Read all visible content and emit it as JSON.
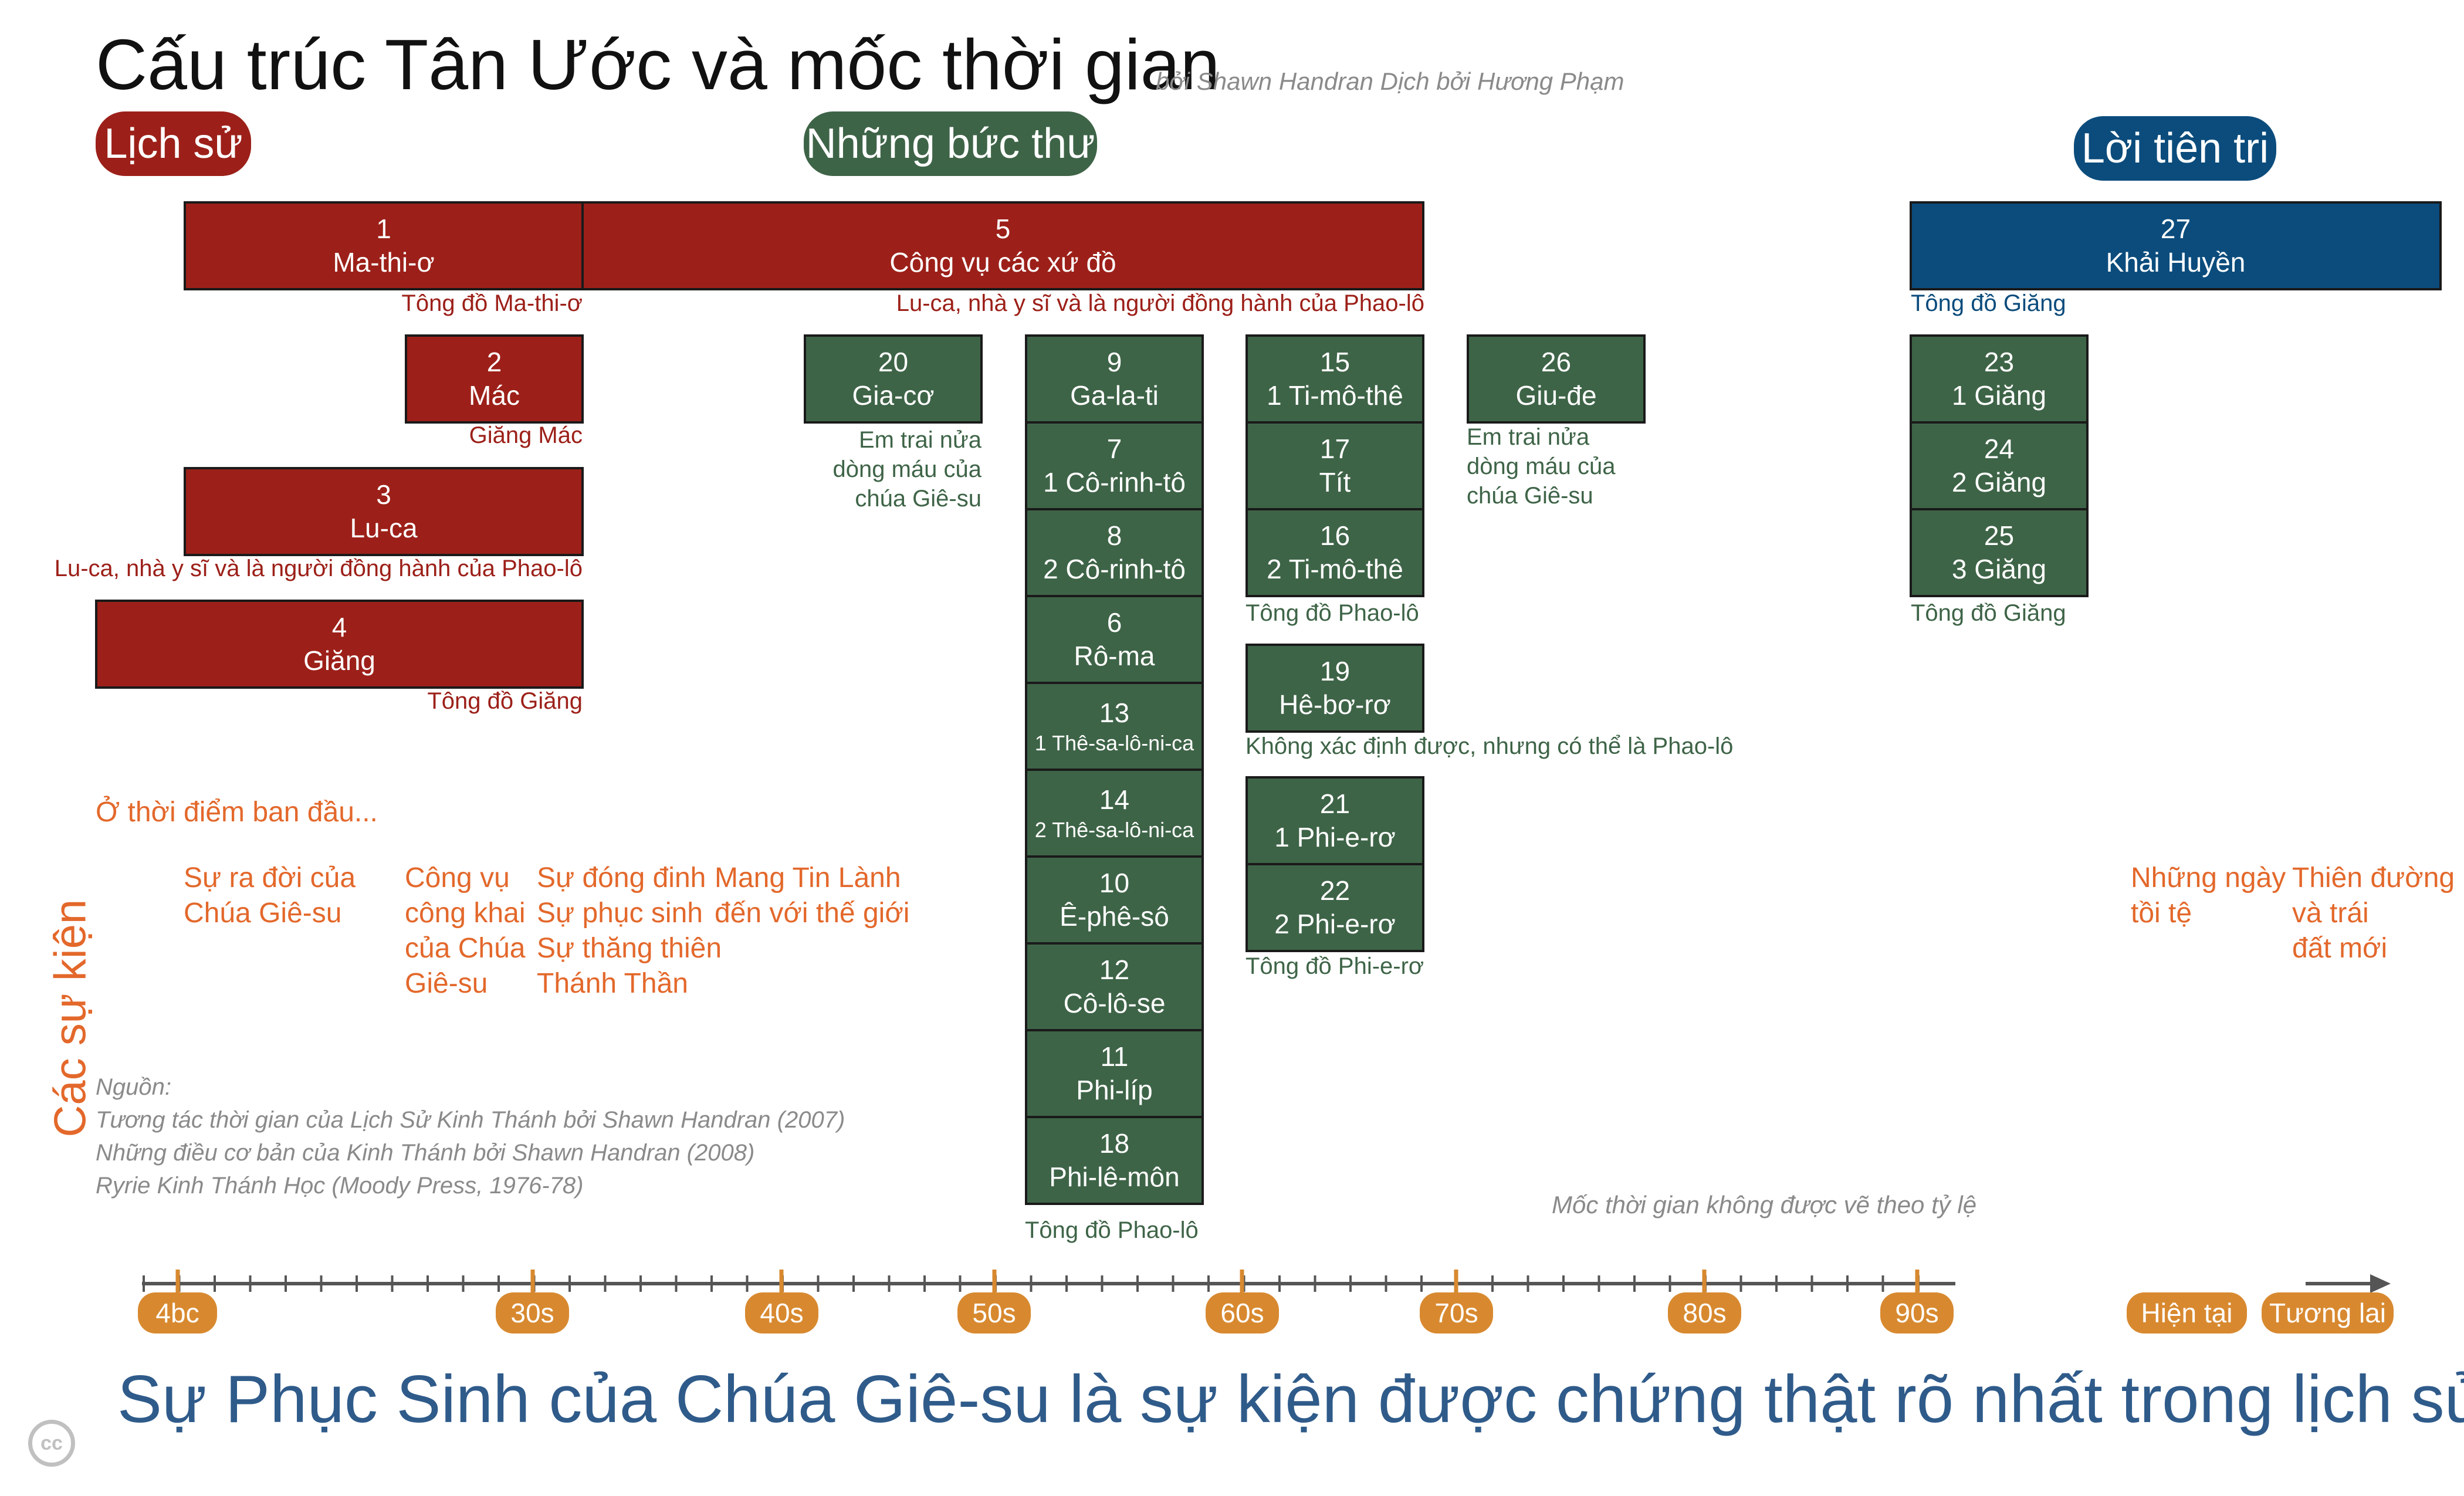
{
  "title": "Cấu trúc Tân Ước và mốc thời gian",
  "byline": "bởi Shawn Handran  Dịch bởi Hương Phạm",
  "categories": {
    "history": "Lịch sử",
    "letters": "Những bức thư",
    "prophecy": "Lời tiên tri"
  },
  "books": {
    "matthew": {
      "num": "1",
      "name": "Ma-thi-ơ",
      "author": "Tông đồ Ma-thi-ơ"
    },
    "acts": {
      "num": "5",
      "name": "Công vụ các xứ đồ",
      "author": "Lu-ca, nhà y sĩ và là người đồng hành của Phao-lô"
    },
    "revelation": {
      "num": "27",
      "name": "Khải Huyền",
      "author": "Tông đồ Giăng"
    },
    "mark": {
      "num": "2",
      "name": "Mác",
      "author": "Giăng Mác"
    },
    "luke": {
      "num": "3",
      "name": "Lu-ca",
      "author": "Lu-ca, nhà y sĩ và là người đồng hành của Phao-lô"
    },
    "john": {
      "num": "4",
      "name": "Giăng",
      "author": "Tông đồ Giăng"
    },
    "james": {
      "num": "20",
      "name": "Gia-cơ",
      "author": "Em trai nửa dòng máu của chúa Giê-su"
    },
    "jude": {
      "num": "26",
      "name": "Giu-đe",
      "author": "Em trai nửa dòng máu của chúa Giê-su"
    },
    "pauline": [
      {
        "num": "9",
        "name": "Ga-la-ti"
      },
      {
        "num": "7",
        "name": "1 Cô-rinh-tô"
      },
      {
        "num": "8",
        "name": "2 Cô-rinh-tô"
      },
      {
        "num": "6",
        "name": "Rô-ma"
      },
      {
        "num": "13",
        "name": "1 Thê-sa-lô-ni-ca"
      },
      {
        "num": "14",
        "name": "2 Thê-sa-lô-ni-ca"
      },
      {
        "num": "10",
        "name": "Ê-phê-sô"
      },
      {
        "num": "12",
        "name": "Cô-lô-se"
      },
      {
        "num": "11",
        "name": "Phi-líp"
      },
      {
        "num": "18",
        "name": "Phi-lê-môn"
      }
    ],
    "pauline_author": "Tông đồ Phao-lô",
    "pastoral": [
      {
        "num": "15",
        "name": "1 Ti-mô-thê"
      },
      {
        "num": "17",
        "name": "Tít"
      },
      {
        "num": "16",
        "name": "2 Ti-mô-thê"
      }
    ],
    "pastoral_author": "Tông đồ Phao-lô",
    "hebrews": {
      "num": "19",
      "name": "Hê-bơ-rơ",
      "author": "Không xác định được, nhưng có thể là Phao-lô"
    },
    "peter": [
      {
        "num": "21",
        "name": "1 Phi-e-rơ"
      },
      {
        "num": "22",
        "name": "2 Phi-e-rơ"
      }
    ],
    "peter_author": "Tông đồ Phi-e-rơ",
    "john_letters": [
      {
        "num": "23",
        "name": "1 Giăng"
      },
      {
        "num": "24",
        "name": "2 Giăng"
      },
      {
        "num": "25",
        "name": "3 Giăng"
      }
    ],
    "john_letters_author": "Tông đồ Giăng"
  },
  "events": {
    "label": "Các sự kiện",
    "intro": "Ở thời điểm ban đầu...",
    "birth": [
      "Sự ra đời của",
      "Chúa Giê-su"
    ],
    "ministry": [
      "Công vụ",
      "công khai",
      "của Chúa",
      "Giê-su"
    ],
    "passion": [
      "Sự đóng đinh",
      "Sự phục sinh",
      "Sự thăng thiên",
      "Thánh Thần"
    ],
    "gospel": [
      "Mang Tin Lành",
      "đến với thế giới"
    ],
    "last_days": [
      "Những ngày",
      "tồi tệ"
    ],
    "new_heaven": [
      "Thiên đường",
      "và trái",
      "đất mới"
    ]
  },
  "sources": {
    "heading": "Nguồn:",
    "lines": [
      "Tương tác thời gian của Lịch Sử Kinh Thánh bởi Shawn Handran (2007)",
      "Những điều cơ bản của Kinh Thánh bởi Shawn Handran (2008)",
      "Ryrie Kinh Thánh Học (Moody Press, 1976-78)"
    ]
  },
  "scale_note": "Mốc thời gian không được vẽ theo tỷ lệ",
  "timeline": {
    "labels": [
      "4bc",
      "30s",
      "40s",
      "50s",
      "60s",
      "70s",
      "80s",
      "90s"
    ],
    "present": "Hiện tại",
    "future": "Tương lai"
  },
  "footer": "Sự Phục Sinh của Chúa Giê-su là sự kiện được chứng thật rõ nhất trong lịch sử",
  "license_badge": "cc",
  "colors": {
    "history_red": "#9c2019",
    "letters_green": "#3e6447",
    "prophecy_blue": "#0b4c7c",
    "events_orange": "#e3682b",
    "timeline_orange": "#d8892f",
    "footer_blue": "#2f5b8a"
  }
}
